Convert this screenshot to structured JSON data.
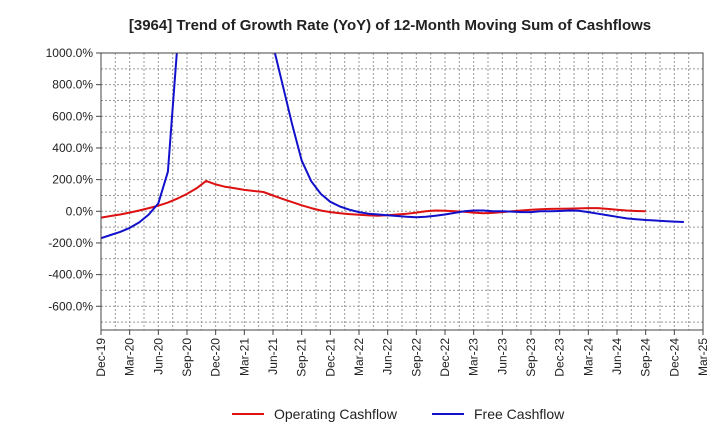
{
  "chart_data": {
    "type": "line",
    "title": "[3964]  Trend of Growth Rate (YoY) of 12-Month Moving Sum of Cashflows",
    "xlabel": "",
    "ylabel": "",
    "ylim": [
      -750,
      1000
    ],
    "y_ticks": [
      1000,
      800,
      600,
      400,
      200,
      0,
      -200,
      -400,
      -600
    ],
    "y_tick_labels": [
      "1000.0%",
      "800.0%",
      "600.0%",
      "400.0%",
      "200.0%",
      "0.0%",
      "-200.0%",
      "-400.0%",
      "-600.0%"
    ],
    "x_tick_labels": [
      "Dec-19",
      "Mar-20",
      "Jun-20",
      "Sep-20",
      "Dec-20",
      "Mar-21",
      "Jun-21",
      "Sep-21",
      "Dec-21",
      "Mar-22",
      "Jun-22",
      "Sep-22",
      "Dec-22",
      "Mar-23",
      "Jun-23",
      "Sep-23",
      "Dec-23",
      "Mar-24",
      "Jun-24",
      "Sep-24",
      "Dec-24",
      "Mar-25"
    ],
    "grid": true,
    "legend_position": "bottom",
    "series": [
      {
        "name": "Operating Cashflow",
        "color": "#dd1111",
        "values": [
          [
            0,
            -40
          ],
          [
            1,
            -30
          ],
          [
            2,
            -20
          ],
          [
            3,
            -8
          ],
          [
            4,
            5
          ],
          [
            5,
            20
          ],
          [
            6,
            35
          ],
          [
            7,
            55
          ],
          [
            8,
            80
          ],
          [
            9,
            110
          ],
          [
            10,
            145
          ],
          [
            11,
            192
          ],
          [
            12,
            170
          ],
          [
            13,
            155
          ],
          [
            14,
            145
          ],
          [
            15,
            135
          ],
          [
            16,
            128
          ],
          [
            17,
            122
          ],
          [
            18,
            100
          ],
          [
            19,
            78
          ],
          [
            20,
            58
          ],
          [
            21,
            38
          ],
          [
            22,
            20
          ],
          [
            23,
            5
          ],
          [
            24,
            -5
          ],
          [
            25,
            -12
          ],
          [
            26,
            -18
          ],
          [
            27,
            -22
          ],
          [
            28,
            -26
          ],
          [
            29,
            -28
          ],
          [
            30,
            -25
          ],
          [
            31,
            -20
          ],
          [
            32,
            -15
          ],
          [
            33,
            -8
          ],
          [
            34,
            0
          ],
          [
            35,
            5
          ],
          [
            36,
            3
          ],
          [
            37,
            0
          ],
          [
            38,
            -3
          ],
          [
            39,
            -8
          ],
          [
            40,
            -12
          ],
          [
            41,
            -10
          ],
          [
            42,
            -5
          ],
          [
            43,
            0
          ],
          [
            44,
            5
          ],
          [
            45,
            10
          ],
          [
            46,
            13
          ],
          [
            47,
            15
          ],
          [
            48,
            16
          ],
          [
            49,
            17
          ],
          [
            50,
            18
          ],
          [
            51,
            20
          ],
          [
            52,
            20
          ],
          [
            53,
            15
          ],
          [
            54,
            10
          ],
          [
            55,
            5
          ],
          [
            56,
            2
          ],
          [
            57,
            0
          ]
        ]
      },
      {
        "name": "Free Cashflow",
        "color": "#1111cc",
        "values": [
          [
            0,
            -170
          ],
          [
            1,
            -150
          ],
          [
            2,
            -130
          ],
          [
            3,
            -105
          ],
          [
            4,
            -70
          ],
          [
            5,
            -20
          ],
          [
            6,
            50
          ],
          [
            7,
            250
          ],
          [
            8,
            1050
          ],
          [
            null,
            null
          ],
          [
            18,
            1050
          ],
          [
            19,
            800
          ],
          [
            20,
            550
          ],
          [
            21,
            320
          ],
          [
            22,
            190
          ],
          [
            23,
            110
          ],
          [
            24,
            60
          ],
          [
            25,
            30
          ],
          [
            26,
            10
          ],
          [
            27,
            -5
          ],
          [
            28,
            -15
          ],
          [
            29,
            -20
          ],
          [
            30,
            -25
          ],
          [
            31,
            -30
          ],
          [
            32,
            -35
          ],
          [
            33,
            -38
          ],
          [
            34,
            -35
          ],
          [
            35,
            -28
          ],
          [
            36,
            -20
          ],
          [
            37,
            -10
          ],
          [
            38,
            0
          ],
          [
            39,
            5
          ],
          [
            40,
            5
          ],
          [
            41,
            0
          ],
          [
            42,
            0
          ],
          [
            43,
            -2
          ],
          [
            44,
            -5
          ],
          [
            45,
            -5
          ],
          [
            46,
            0
          ],
          [
            47,
            0
          ],
          [
            48,
            2
          ],
          [
            49,
            5
          ],
          [
            50,
            3
          ],
          [
            51,
            -5
          ],
          [
            52,
            -15
          ],
          [
            53,
            -25
          ],
          [
            54,
            -35
          ],
          [
            55,
            -45
          ],
          [
            56,
            -50
          ],
          [
            57,
            -55
          ],
          [
            58,
            -58
          ],
          [
            59,
            -62
          ],
          [
            60,
            -65
          ],
          [
            61,
            -68
          ]
        ]
      }
    ]
  }
}
